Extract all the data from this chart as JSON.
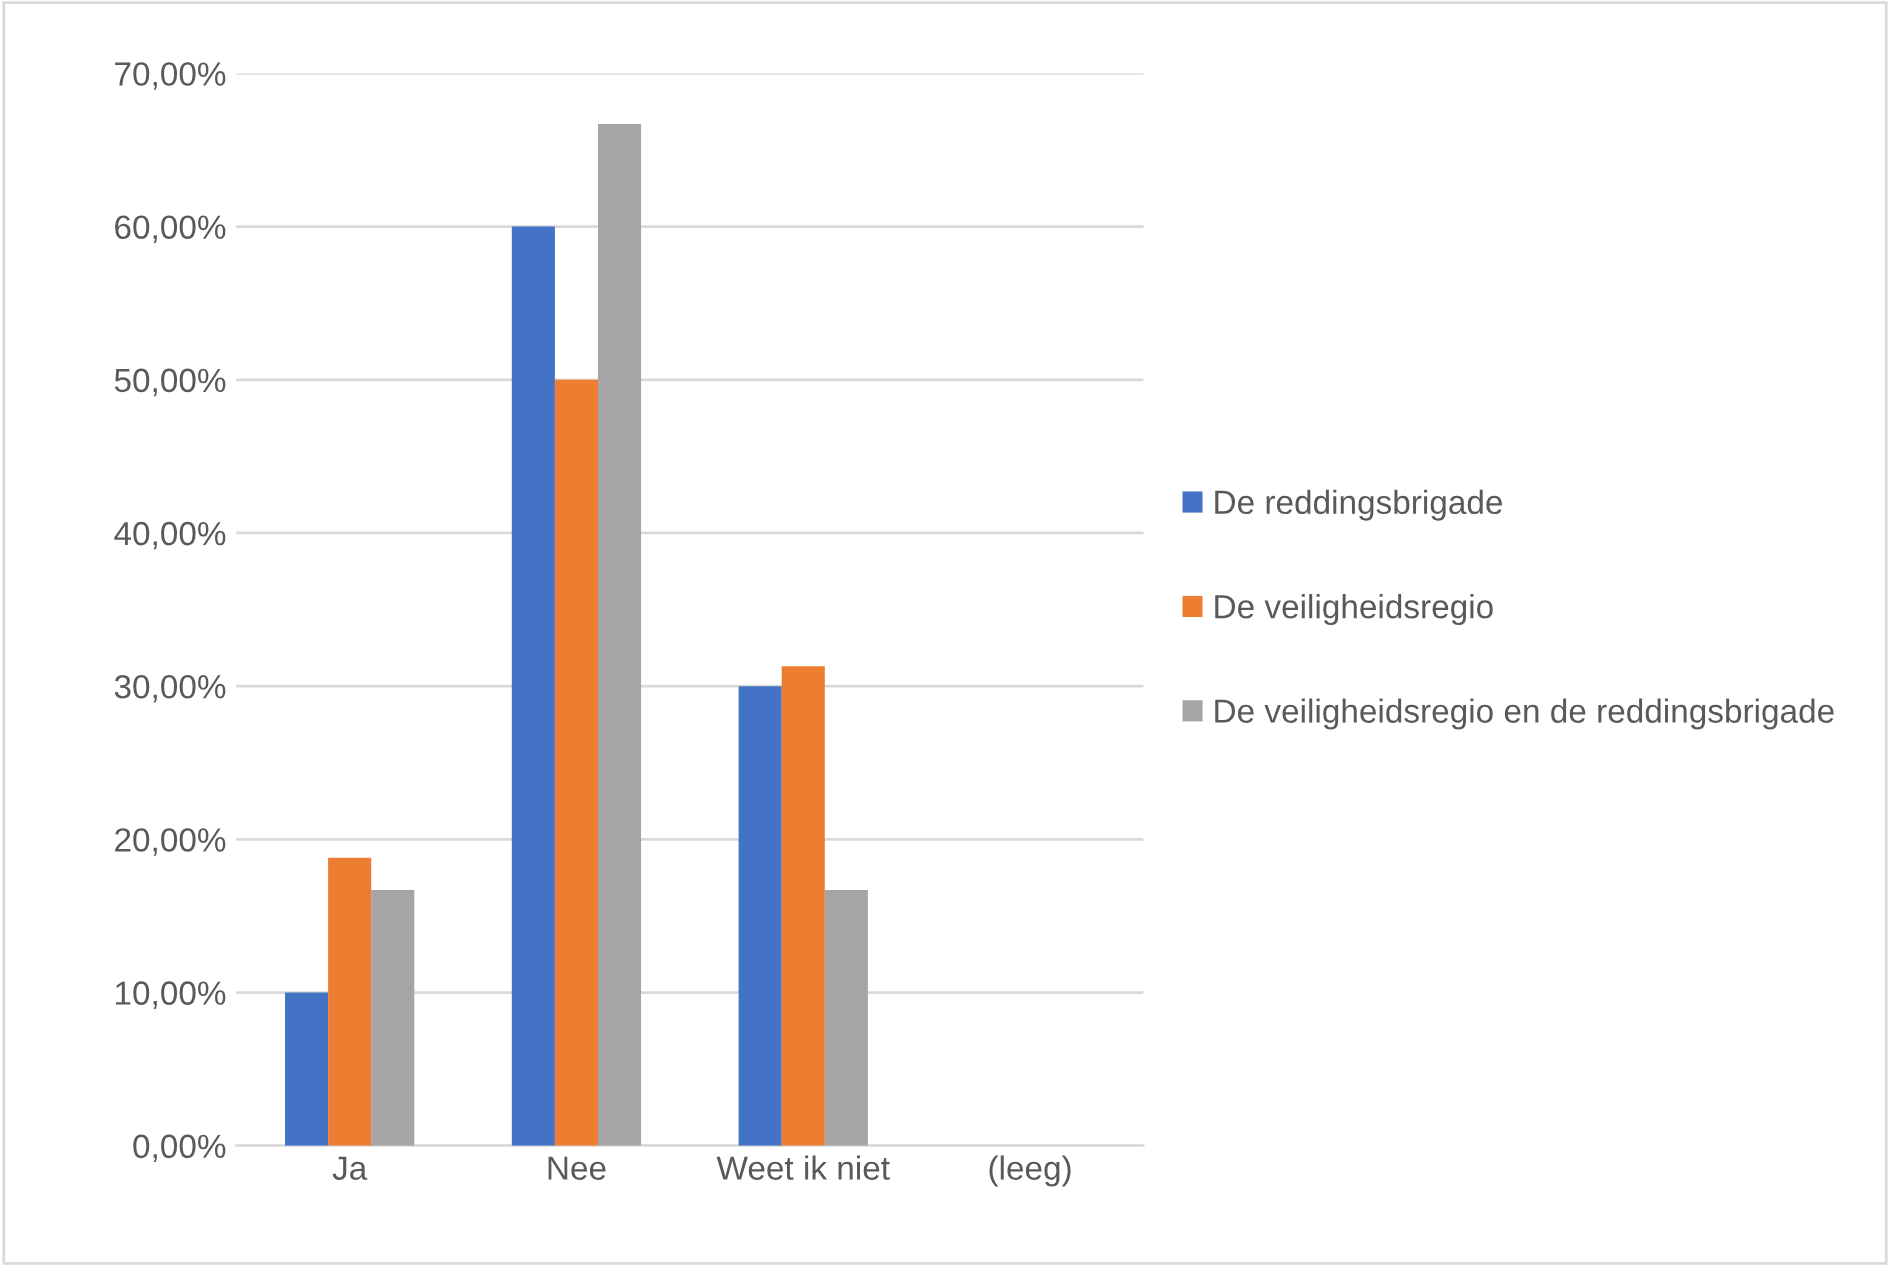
{
  "chart_data": {
    "type": "bar",
    "categories": [
      "Ja",
      "Nee",
      "Weet ik niet",
      "(leeg)"
    ],
    "series": [
      {
        "name": "De reddingsbrigade",
        "color": "#4472c4",
        "values": [
          10,
          60,
          30,
          0
        ]
      },
      {
        "name": "De veiligheidsregio",
        "color": "#ed7d31",
        "values": [
          18.8,
          50,
          31.3,
          0
        ]
      },
      {
        "name": "De veiligheidsregio en de reddingsbrigade",
        "color": "#a5a5a5",
        "values": [
          16.7,
          66.7,
          16.7,
          0
        ]
      }
    ],
    "ylim": [
      0,
      70
    ],
    "yticks": [
      {
        "value": 0,
        "label": "0,00%"
      },
      {
        "value": 10,
        "label": "10,00%"
      },
      {
        "value": 20,
        "label": "20,00%"
      },
      {
        "value": 30,
        "label": "30,00%"
      },
      {
        "value": 40,
        "label": "40,00%"
      },
      {
        "value": 50,
        "label": "50,00%"
      },
      {
        "value": 60,
        "label": "60,00%"
      },
      {
        "value": 70,
        "label": "70,00%"
      }
    ],
    "grid": "y",
    "legend": "right"
  }
}
